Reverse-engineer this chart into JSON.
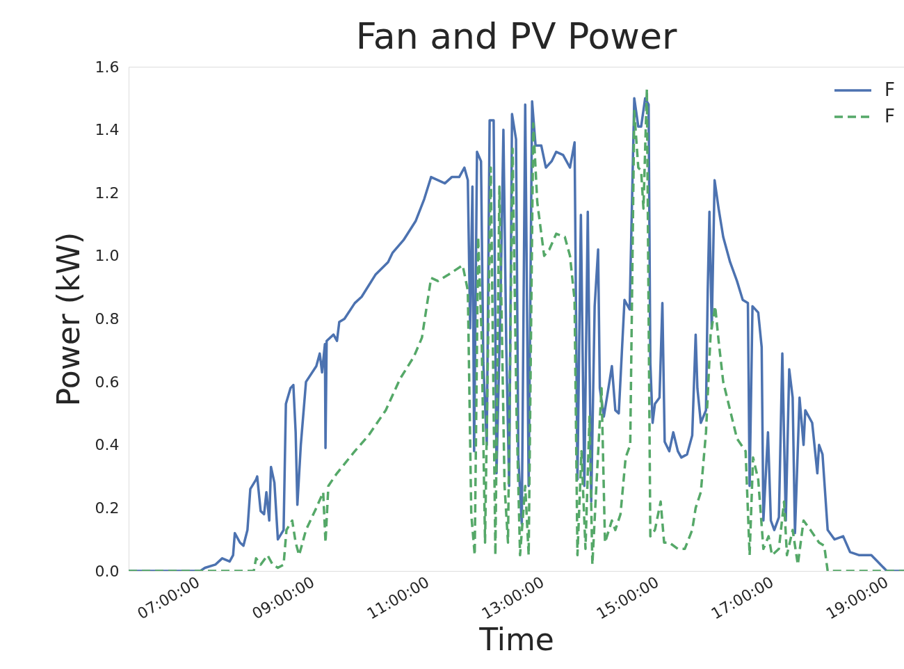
{
  "chart_data": {
    "type": "line",
    "title": "Fan and PV Power",
    "xlabel": "Time",
    "ylabel": "Power (kW)",
    "xlim": [
      5.79,
      19.3
    ],
    "xticks": [
      {
        "value": 7,
        "label": "07:00:00"
      },
      {
        "value": 9,
        "label": "09:00:00"
      },
      {
        "value": 11,
        "label": "11:00:00"
      },
      {
        "value": 13,
        "label": "13:00:00"
      },
      {
        "value": 15,
        "label": "15:00:00"
      },
      {
        "value": 17,
        "label": "17:00:00"
      },
      {
        "value": 19,
        "label": "19:00:00"
      }
    ],
    "ylim": [
      0,
      1.6
    ],
    "yticks": [
      {
        "value": 0,
        "label": "0.0"
      },
      0.2,
      0.4,
      0.6,
      0.8,
      {
        "value": 1,
        "label": "1.0"
      },
      1.2,
      1.4,
      1.6
    ],
    "grid": false,
    "legend": "top right",
    "series": [
      {
        "name": "F",
        "color": "#4c72b0",
        "line_style": "solid",
        "x": [
          5.79,
          7.04,
          7.12,
          7.3,
          7.42,
          7.55,
          7.61,
          7.64,
          7.73,
          7.79,
          7.86,
          7.91,
          8.01,
          8.03,
          8.09,
          8.15,
          8.19,
          8.24,
          8.27,
          8.33,
          8.39,
          8.49,
          8.53,
          8.61,
          8.66,
          8.7,
          8.73,
          8.79,
          8.88,
          9.06,
          9.12,
          9.16,
          9.21,
          9.22,
          9.24,
          9.36,
          9.42,
          9.46,
          9.55,
          9.73,
          9.85,
          10.09,
          10.31,
          10.39,
          10.58,
          10.79,
          10.94,
          11.06,
          11.18,
          11.3,
          11.42,
          11.55,
          11.64,
          11.7,
          11.74,
          11.78,
          11.81,
          11.86,
          11.93,
          11.97,
          12.03,
          12.08,
          12.15,
          12.2,
          12.27,
          12.32,
          12.37,
          12.42,
          12.47,
          12.54,
          12.58,
          12.64,
          12.7,
          12.76,
          12.82,
          12.88,
          12.98,
          13.06,
          13.16,
          13.24,
          13.36,
          13.48,
          13.56,
          13.61,
          13.67,
          13.73,
          13.79,
          13.85,
          13.91,
          13.97,
          14.0,
          14.07,
          14.15,
          14.21,
          14.27,
          14.33,
          14.43,
          14.52,
          14.6,
          14.67,
          14.72,
          14.79,
          14.85,
          14.88,
          14.92,
          14.96,
          15.04,
          15.09,
          15.13,
          15.21,
          15.28,
          15.36,
          15.42,
          15.52,
          15.61,
          15.67,
          15.7,
          15.76,
          15.85,
          15.88,
          15.91,
          15.95,
          16.0,
          16.07,
          16.15,
          16.27,
          16.39,
          16.49,
          16.58,
          16.61,
          16.66,
          16.76,
          16.82,
          16.85,
          16.93,
          16.98,
          17.04,
          17.12,
          17.18,
          17.24,
          17.3,
          17.36,
          17.4,
          17.48,
          17.55,
          17.58,
          17.7,
          17.79,
          17.82,
          17.88,
          17.97,
          18.09,
          18.24,
          18.36,
          18.52,
          18.73,
          18.84,
          19.0,
          19.3
        ],
        "values": [
          0,
          0,
          0.01,
          0.02,
          0.04,
          0.03,
          0.05,
          0.12,
          0.09,
          0.08,
          0.13,
          0.26,
          0.29,
          0.3,
          0.19,
          0.18,
          0.25,
          0.16,
          0.33,
          0.28,
          0.1,
          0.13,
          0.53,
          0.58,
          0.59,
          0.44,
          0.21,
          0.4,
          0.6,
          0.65,
          0.69,
          0.63,
          0.72,
          0.39,
          0.73,
          0.75,
          0.73,
          0.79,
          0.8,
          0.85,
          0.87,
          0.94,
          0.98,
          1.01,
          1.05,
          1.11,
          1.18,
          1.25,
          1.24,
          1.23,
          1.25,
          1.25,
          1.28,
          1.24,
          0.77,
          1.22,
          0.38,
          1.33,
          1.3,
          0.66,
          0.4,
          1.43,
          1.43,
          0.31,
          0.86,
          1.4,
          0.71,
          0.27,
          1.45,
          1.37,
          0.36,
          0.15,
          1.48,
          0.27,
          1.49,
          1.35,
          1.35,
          1.28,
          1.3,
          1.33,
          1.32,
          1.28,
          1.36,
          0.29,
          1.13,
          0.27,
          1.14,
          0.22,
          0.84,
          1.02,
          0.58,
          0.49,
          0.58,
          0.65,
          0.51,
          0.5,
          0.86,
          0.83,
          1.5,
          1.41,
          1.41,
          1.5,
          1.48,
          0.66,
          0.47,
          0.53,
          0.55,
          0.85,
          0.41,
          0.38,
          0.44,
          0.38,
          0.36,
          0.37,
          0.43,
          0.75,
          0.58,
          0.47,
          0.51,
          0.89,
          1.14,
          0.77,
          1.24,
          1.15,
          1.06,
          0.98,
          0.92,
          0.86,
          0.85,
          0.27,
          0.84,
          0.82,
          0.71,
          0.16,
          0.44,
          0.16,
          0.13,
          0.17,
          0.69,
          0.16,
          0.64,
          0.55,
          0.12,
          0.55,
          0.4,
          0.51,
          0.47,
          0.31,
          0.4,
          0.37,
          0.13,
          0.1,
          0.11,
          0.06,
          0.05,
          0.05,
          0.03,
          0,
          0
        ]
      },
      {
        "name": "F",
        "color": "#55a868",
        "line_style": "dashed",
        "x": [
          5.79,
          7.97,
          8.01,
          8.09,
          8.21,
          8.3,
          8.39,
          8.49,
          8.54,
          8.64,
          8.7,
          8.76,
          8.88,
          9.06,
          9.18,
          9.22,
          9.27,
          9.42,
          9.73,
          9.97,
          10.27,
          10.52,
          10.76,
          10.9,
          11.06,
          11.18,
          11.36,
          11.61,
          11.7,
          11.76,
          11.82,
          11.88,
          11.94,
          12.0,
          12.1,
          12.18,
          12.25,
          12.34,
          12.4,
          12.48,
          12.55,
          12.61,
          12.7,
          12.76,
          12.84,
          12.91,
          13.03,
          13.12,
          13.24,
          13.39,
          13.48,
          13.56,
          13.61,
          13.68,
          13.75,
          13.82,
          13.87,
          13.94,
          14.03,
          14.09,
          14.21,
          14.27,
          14.36,
          14.45,
          14.53,
          14.6,
          14.67,
          14.72,
          14.76,
          14.82,
          14.88,
          14.96,
          15.06,
          15.12,
          15.21,
          15.36,
          15.48,
          15.61,
          15.67,
          15.76,
          15.85,
          15.93,
          16.01,
          16.07,
          16.15,
          16.27,
          16.39,
          16.54,
          16.61,
          16.67,
          16.76,
          16.85,
          16.94,
          17.0,
          17.12,
          17.21,
          17.26,
          17.36,
          17.45,
          17.55,
          17.67,
          17.82,
          17.91,
          17.97,
          19.3
        ],
        "values": [
          0,
          0,
          0.04,
          0.02,
          0.05,
          0.02,
          0.01,
          0.02,
          0.13,
          0.16,
          0.09,
          0.05,
          0.13,
          0.2,
          0.25,
          0.09,
          0.27,
          0.31,
          0.38,
          0.43,
          0.51,
          0.61,
          0.68,
          0.74,
          0.93,
          0.92,
          0.94,
          0.97,
          0.89,
          0.18,
          0.05,
          1.06,
          0.75,
          0.09,
          1.28,
          0.05,
          1.22,
          0.27,
          0.09,
          1.34,
          0.49,
          0.05,
          0.27,
          0.05,
          1.42,
          1.17,
          1.0,
          1.02,
          1.07,
          1.06,
          1.0,
          0.86,
          0.05,
          0.38,
          0.07,
          0.49,
          0.02,
          0.27,
          0.58,
          0.09,
          0.16,
          0.13,
          0.18,
          0.36,
          0.4,
          1.46,
          1.28,
          1.27,
          1.15,
          1.53,
          0.11,
          0.13,
          0.22,
          0.09,
          0.09,
          0.07,
          0.07,
          0.13,
          0.2,
          0.25,
          0.44,
          0.75,
          0.84,
          0.73,
          0.6,
          0.51,
          0.42,
          0.38,
          0.05,
          0.36,
          0.29,
          0.07,
          0.11,
          0.05,
          0.07,
          0.22,
          0.05,
          0.13,
          0.02,
          0.16,
          0.13,
          0.09,
          0.08,
          0,
          0
        ]
      }
    ]
  }
}
